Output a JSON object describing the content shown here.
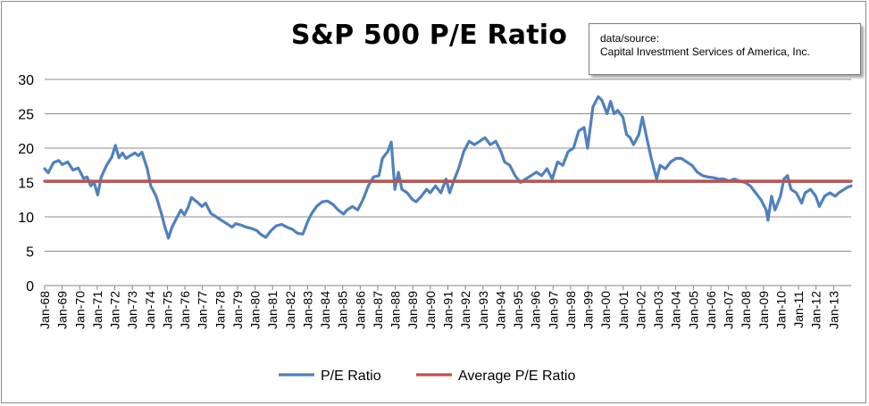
{
  "chart_data": {
    "type": "line",
    "title": "S&P 500 P/E Ratio",
    "source_note": [
      "data/source:",
      "Capital Investment Services of America, Inc."
    ],
    "xlabel": "",
    "ylabel": "",
    "ylim": [
      0,
      30
    ],
    "yticks": [
      0,
      5,
      10,
      15,
      20,
      25,
      30
    ],
    "x_tick_labels": [
      "Jan-68",
      "Jan-69",
      "Jan-70",
      "Jan-71",
      "Jan-72",
      "Jan-73",
      "Jan-74",
      "Jan-75",
      "Jan-76",
      "Jan-77",
      "Jan-78",
      "Jan-79",
      "Jan-80",
      "Jan-81",
      "Jan-82",
      "Jan-83",
      "Jan-84",
      "Jan-85",
      "Jan-86",
      "Jan-87",
      "Jan-88",
      "Jan-89",
      "Jan-90",
      "Jan-91",
      "Jan-92",
      "Jan-93",
      "Jan-94",
      "Jan-95",
      "Jan-96",
      "Jan-97",
      "Jan-98",
      "Jan-99",
      "Jan-00",
      "Jan-01",
      "Jan-02",
      "Jan-03",
      "Jan-04",
      "Jan-05",
      "Jan-06",
      "Jan-07",
      "Jan-08",
      "Jan-09",
      "Jan-10",
      "Jan-11",
      "Jan-12",
      "Jan-13"
    ],
    "x_range": [
      1968.0,
      2013.6
    ],
    "grid": "horizontal",
    "legend_position": "bottom",
    "series": [
      {
        "name": "P/E Ratio",
        "color": "#4f81bd",
        "points": [
          [
            1968.0,
            17.0
          ],
          [
            1968.2,
            16.4
          ],
          [
            1968.5,
            17.9
          ],
          [
            1968.8,
            18.2
          ],
          [
            1969.0,
            17.6
          ],
          [
            1969.3,
            18.0
          ],
          [
            1969.6,
            16.8
          ],
          [
            1969.9,
            17.1
          ],
          [
            1970.2,
            15.6
          ],
          [
            1970.4,
            15.8
          ],
          [
            1970.6,
            14.5
          ],
          [
            1970.8,
            15.0
          ],
          [
            1971.0,
            13.2
          ],
          [
            1971.2,
            15.8
          ],
          [
            1971.5,
            17.5
          ],
          [
            1971.8,
            18.7
          ],
          [
            1972.0,
            20.4
          ],
          [
            1972.2,
            18.6
          ],
          [
            1972.4,
            19.3
          ],
          [
            1972.6,
            18.5
          ],
          [
            1972.9,
            19.0
          ],
          [
            1973.1,
            19.3
          ],
          [
            1973.3,
            18.9
          ],
          [
            1973.5,
            19.4
          ],
          [
            1973.8,
            17.0
          ],
          [
            1974.0,
            14.5
          ],
          [
            1974.3,
            13.0
          ],
          [
            1974.6,
            10.5
          ],
          [
            1974.8,
            8.5
          ],
          [
            1975.0,
            6.9
          ],
          [
            1975.2,
            8.5
          ],
          [
            1975.4,
            9.5
          ],
          [
            1975.7,
            11.0
          ],
          [
            1975.9,
            10.3
          ],
          [
            1976.1,
            11.3
          ],
          [
            1976.3,
            12.8
          ],
          [
            1976.6,
            12.2
          ],
          [
            1976.9,
            11.5
          ],
          [
            1977.1,
            12.0
          ],
          [
            1977.4,
            10.5
          ],
          [
            1977.7,
            10.0
          ],
          [
            1978.0,
            9.5
          ],
          [
            1978.3,
            9.0
          ],
          [
            1978.6,
            8.5
          ],
          [
            1978.8,
            9.0
          ],
          [
            1979.1,
            8.8
          ],
          [
            1979.4,
            8.5
          ],
          [
            1979.7,
            8.3
          ],
          [
            1980.0,
            8.0
          ],
          [
            1980.2,
            7.5
          ],
          [
            1980.5,
            7.0
          ],
          [
            1980.8,
            8.0
          ],
          [
            1981.1,
            8.7
          ],
          [
            1981.4,
            8.9
          ],
          [
            1981.7,
            8.5
          ],
          [
            1982.0,
            8.2
          ],
          [
            1982.3,
            7.6
          ],
          [
            1982.6,
            7.5
          ],
          [
            1982.9,
            9.5
          ],
          [
            1983.1,
            10.5
          ],
          [
            1983.4,
            11.6
          ],
          [
            1983.7,
            12.2
          ],
          [
            1984.0,
            12.3
          ],
          [
            1984.3,
            11.8
          ],
          [
            1984.6,
            11.0
          ],
          [
            1984.9,
            10.4
          ],
          [
            1985.1,
            11.0
          ],
          [
            1985.4,
            11.5
          ],
          [
            1985.7,
            11.0
          ],
          [
            1986.0,
            12.5
          ],
          [
            1986.3,
            14.5
          ],
          [
            1986.6,
            15.8
          ],
          [
            1986.9,
            16.0
          ],
          [
            1987.1,
            18.5
          ],
          [
            1987.4,
            19.5
          ],
          [
            1987.6,
            20.9
          ],
          [
            1987.8,
            14.0
          ],
          [
            1988.0,
            16.5
          ],
          [
            1988.2,
            14.0
          ],
          [
            1988.5,
            13.5
          ],
          [
            1988.8,
            12.5
          ],
          [
            1989.0,
            12.2
          ],
          [
            1989.3,
            13.0
          ],
          [
            1989.6,
            14.0
          ],
          [
            1989.8,
            13.5
          ],
          [
            1990.1,
            14.5
          ],
          [
            1990.4,
            13.5
          ],
          [
            1990.7,
            15.5
          ],
          [
            1990.9,
            13.5
          ],
          [
            1991.1,
            15.0
          ],
          [
            1991.4,
            17.0
          ],
          [
            1991.7,
            19.5
          ],
          [
            1992.0,
            21.0
          ],
          [
            1992.3,
            20.5
          ],
          [
            1992.6,
            21.0
          ],
          [
            1992.9,
            21.5
          ],
          [
            1993.2,
            20.5
          ],
          [
            1993.5,
            21.0
          ],
          [
            1993.8,
            19.5
          ],
          [
            1994.0,
            18.0
          ],
          [
            1994.3,
            17.5
          ],
          [
            1994.6,
            16.0
          ],
          [
            1994.9,
            15.0
          ],
          [
            1995.2,
            15.5
          ],
          [
            1995.5,
            16.0
          ],
          [
            1995.8,
            16.5
          ],
          [
            1996.1,
            16.0
          ],
          [
            1996.4,
            17.0
          ],
          [
            1996.7,
            15.5
          ],
          [
            1997.0,
            18.0
          ],
          [
            1997.3,
            17.5
          ],
          [
            1997.6,
            19.5
          ],
          [
            1997.9,
            20.0
          ],
          [
            1998.2,
            22.5
          ],
          [
            1998.5,
            23.0
          ],
          [
            1998.7,
            20.0
          ],
          [
            1999.0,
            26.0
          ],
          [
            1999.3,
            27.5
          ],
          [
            1999.5,
            27.0
          ],
          [
            1999.8,
            25.0
          ],
          [
            2000.0,
            26.8
          ],
          [
            2000.2,
            25.0
          ],
          [
            2000.4,
            25.5
          ],
          [
            2000.7,
            24.5
          ],
          [
            2000.9,
            22.0
          ],
          [
            2001.1,
            21.5
          ],
          [
            2001.3,
            20.5
          ],
          [
            2001.6,
            22.0
          ],
          [
            2001.8,
            24.5
          ],
          [
            2002.0,
            22.0
          ],
          [
            2002.3,
            18.5
          ],
          [
            2002.6,
            15.5
          ],
          [
            2002.8,
            17.5
          ],
          [
            2003.1,
            17.0
          ],
          [
            2003.4,
            18.0
          ],
          [
            2003.7,
            18.5
          ],
          [
            2004.0,
            18.5
          ],
          [
            2004.3,
            18.0
          ],
          [
            2004.6,
            17.5
          ],
          [
            2004.9,
            16.5
          ],
          [
            2005.2,
            16.0
          ],
          [
            2005.5,
            15.8
          ],
          [
            2005.8,
            15.7
          ],
          [
            2006.1,
            15.5
          ],
          [
            2006.4,
            15.5
          ],
          [
            2006.7,
            15.2
          ],
          [
            2007.0,
            15.5
          ],
          [
            2007.3,
            15.2
          ],
          [
            2007.6,
            15.0
          ],
          [
            2007.9,
            14.5
          ],
          [
            2008.2,
            13.5
          ],
          [
            2008.5,
            12.5
          ],
          [
            2008.8,
            11.0
          ],
          [
            2008.9,
            9.5
          ],
          [
            2009.1,
            13.0
          ],
          [
            2009.3,
            11.0
          ],
          [
            2009.6,
            13.0
          ],
          [
            2009.8,
            15.5
          ],
          [
            2010.0,
            16.0
          ],
          [
            2010.2,
            14.0
          ],
          [
            2010.5,
            13.5
          ],
          [
            2010.8,
            12.0
          ],
          [
            2011.0,
            13.5
          ],
          [
            2011.3,
            14.0
          ],
          [
            2011.6,
            13.0
          ],
          [
            2011.8,
            11.5
          ],
          [
            2012.1,
            13.0
          ],
          [
            2012.4,
            13.5
          ],
          [
            2012.7,
            13.0
          ],
          [
            2012.9,
            13.5
          ],
          [
            2013.2,
            14.0
          ],
          [
            2013.4,
            14.3
          ],
          [
            2013.6,
            14.5
          ]
        ]
      },
      {
        "name": "Average P/E Ratio",
        "color": "#c0504d",
        "points": [
          [
            1968.0,
            15.2
          ],
          [
            2013.6,
            15.2
          ]
        ]
      }
    ]
  }
}
